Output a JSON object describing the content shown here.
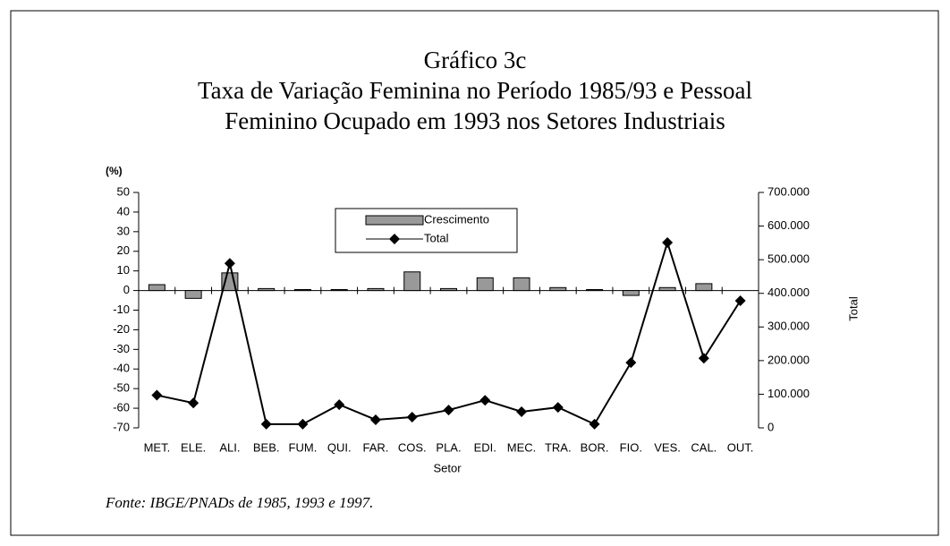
{
  "chart_data": {
    "type": "bar_line",
    "title": "Gráfico 3c",
    "subtitle": [
      "Taxa de Variação Feminina no Período 1985/93 e Pessoal",
      "Feminino Ocupado em 1993 nos Setores Industriais"
    ],
    "ylabel": "(%)",
    "xlabel": "Setor",
    "y2label": "Total",
    "source": "Fonte: IBGE/PNADs de 1985, 1993 e 1997.",
    "categories": [
      "MET.",
      "ELE.",
      "ALI.",
      "BEB.",
      "FUM.",
      "QUI.",
      "FAR.",
      "COS.",
      "PLA.",
      "EDI.",
      "MEC.",
      "TRA.",
      "BOR.",
      "FIO.",
      "VES.",
      "CAL.",
      "OUT."
    ],
    "series": [
      {
        "name": "Crescimento",
        "type": "bar",
        "color": "#999999",
        "values": [
          3,
          -4,
          9,
          1,
          0.5,
          0.5,
          1,
          9.5,
          1,
          6.5,
          6.5,
          1.5,
          0.5,
          -2.5,
          1.5,
          3.5,
          0
        ]
      },
      {
        "name": "Total",
        "type": "line",
        "axis": "y2",
        "color": "#000000",
        "values": [
          97000,
          74000,
          489000,
          11000,
          11000,
          69000,
          24000,
          32000,
          53000,
          82000,
          48000,
          61000,
          11000,
          194000,
          551000,
          207000,
          378000
        ]
      }
    ],
    "ylim": [
      -70,
      50
    ],
    "yticks": [
      -70,
      -60,
      -50,
      -40,
      -30,
      -20,
      -10,
      0,
      10,
      20,
      30,
      40,
      50
    ],
    "y2lim": [
      0,
      700000
    ],
    "y2ticks": [
      0,
      {
        "value": 100000,
        "label": "100.000"
      },
      {
        "value": 200000,
        "label": "200.000"
      },
      {
        "value": 300000,
        "label": "300.000"
      },
      {
        "value": 400000,
        "label": "400.000"
      },
      {
        "value": 500000,
        "label": "500.000"
      },
      {
        "value": 600000,
        "label": "600.000"
      },
      {
        "value": 700000,
        "label": "700.000"
      }
    ]
  }
}
